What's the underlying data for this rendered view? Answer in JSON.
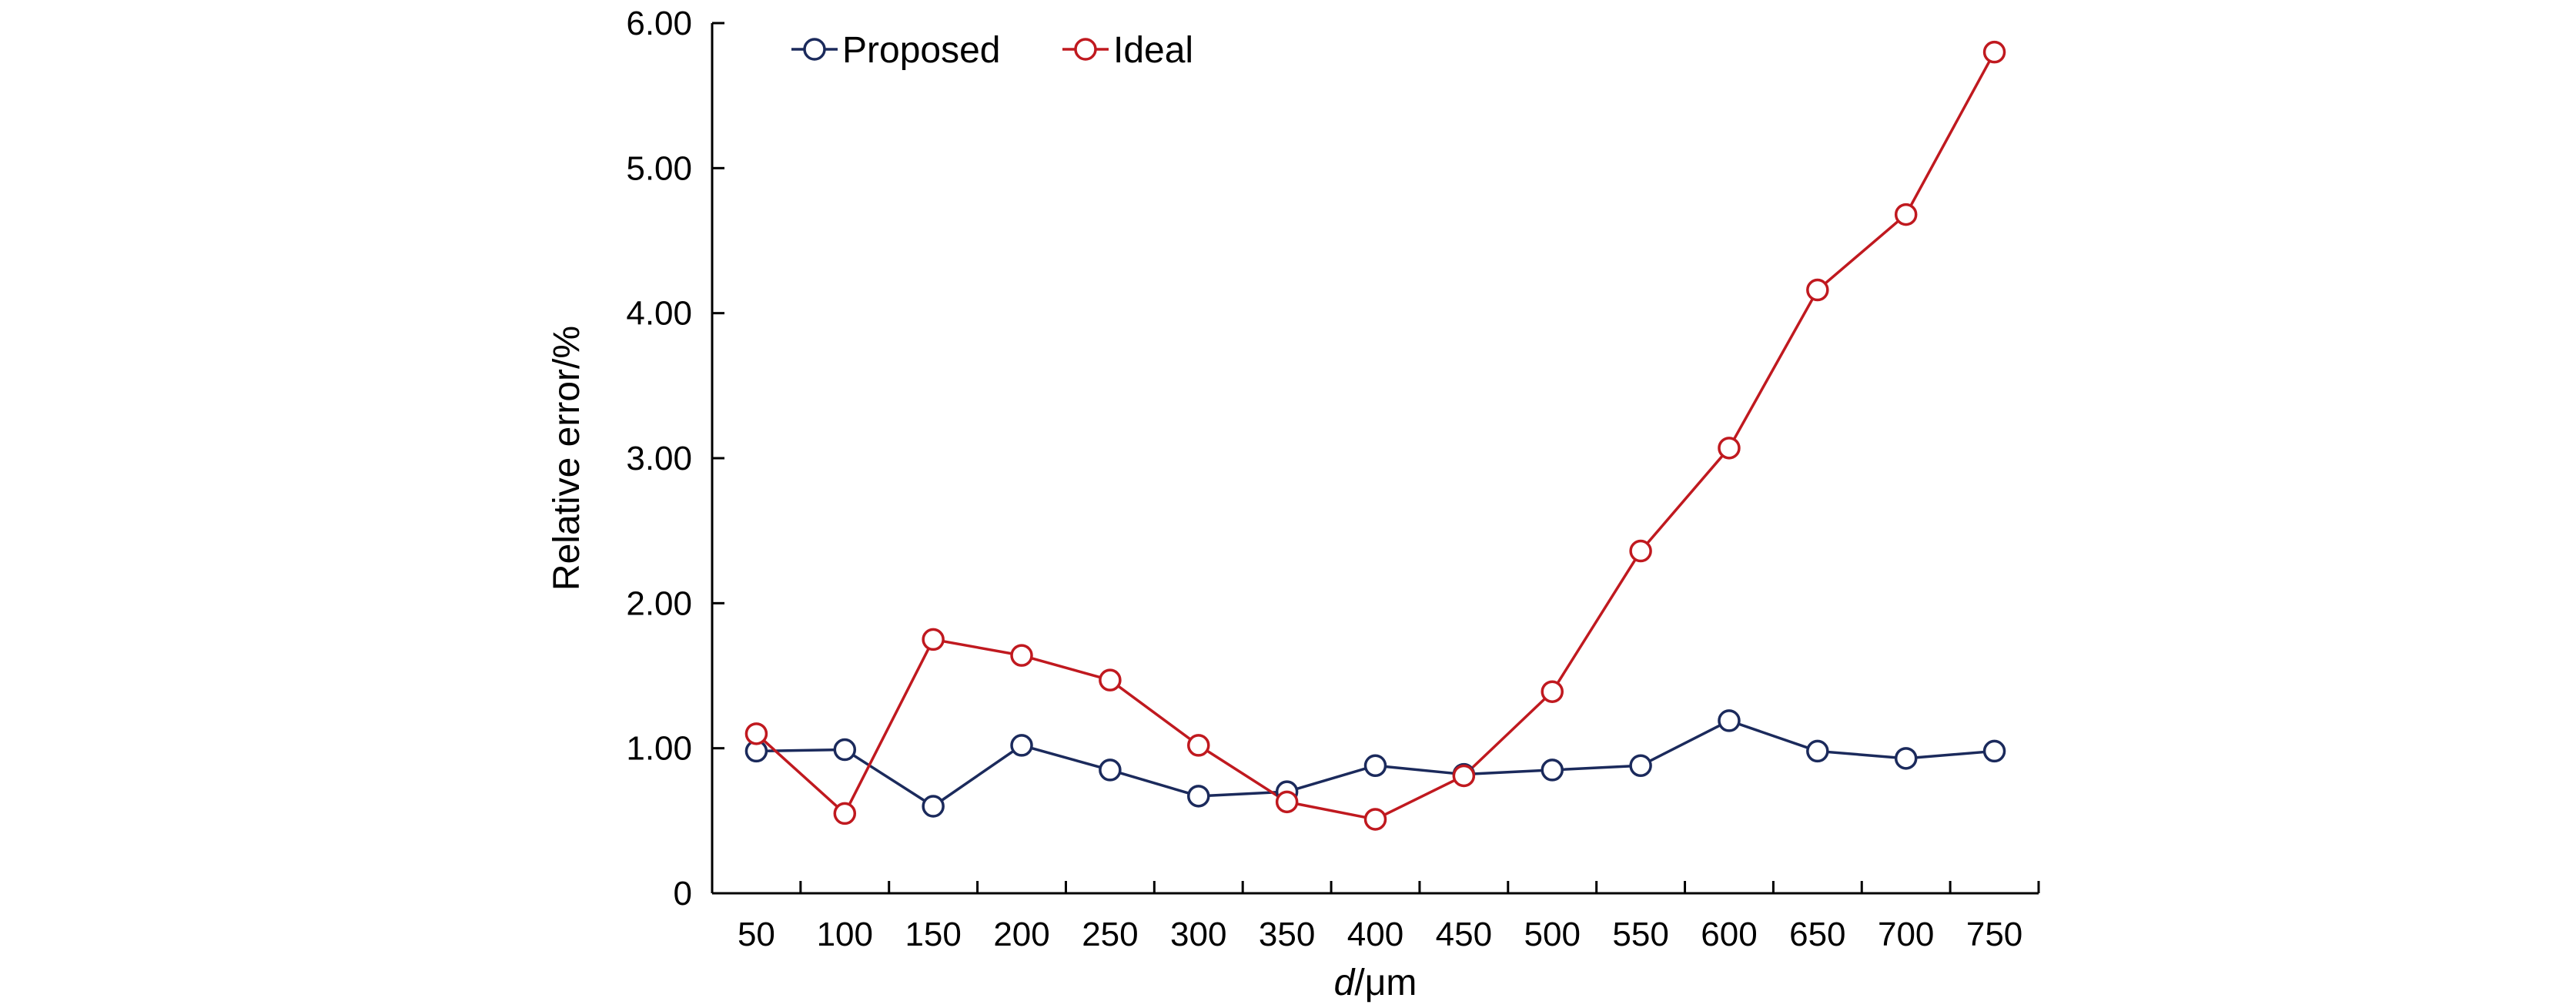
{
  "chart_data": {
    "type": "line",
    "title": "",
    "xlabel_italic": "d",
    "xlabel_rest": "/μm",
    "ylabel": "Relative error/%",
    "x": [
      50,
      100,
      150,
      200,
      250,
      300,
      350,
      400,
      450,
      500,
      550,
      600,
      650,
      700,
      750
    ],
    "x_tick_labels": [
      "50",
      "100",
      "150",
      "200",
      "250",
      "300",
      "350",
      "400",
      "450",
      "500",
      "550",
      "600",
      "650",
      "700",
      "750"
    ],
    "ylim": [
      0,
      6
    ],
    "y_ticks": [
      0,
      1,
      2,
      3,
      4,
      5,
      6
    ],
    "y_tick_labels": [
      "0",
      "1.00",
      "2.00",
      "3.00",
      "4.00",
      "5.00",
      "6.00"
    ],
    "grid": false,
    "legend_position": "top-left",
    "marker": "open-circle",
    "series": [
      {
        "name": "Proposed",
        "color": "#1b2a5c",
        "values": [
          0.98,
          0.99,
          0.6,
          1.02,
          0.85,
          0.67,
          0.7,
          0.88,
          0.82,
          0.85,
          0.88,
          1.19,
          0.98,
          0.93,
          0.98
        ]
      },
      {
        "name": "Ideal",
        "color": "#c0191f",
        "values": [
          1.1,
          0.55,
          1.75,
          1.64,
          1.47,
          1.02,
          0.63,
          0.51,
          0.81,
          1.39,
          2.36,
          3.07,
          4.16,
          4.68,
          5.8
        ]
      }
    ]
  }
}
